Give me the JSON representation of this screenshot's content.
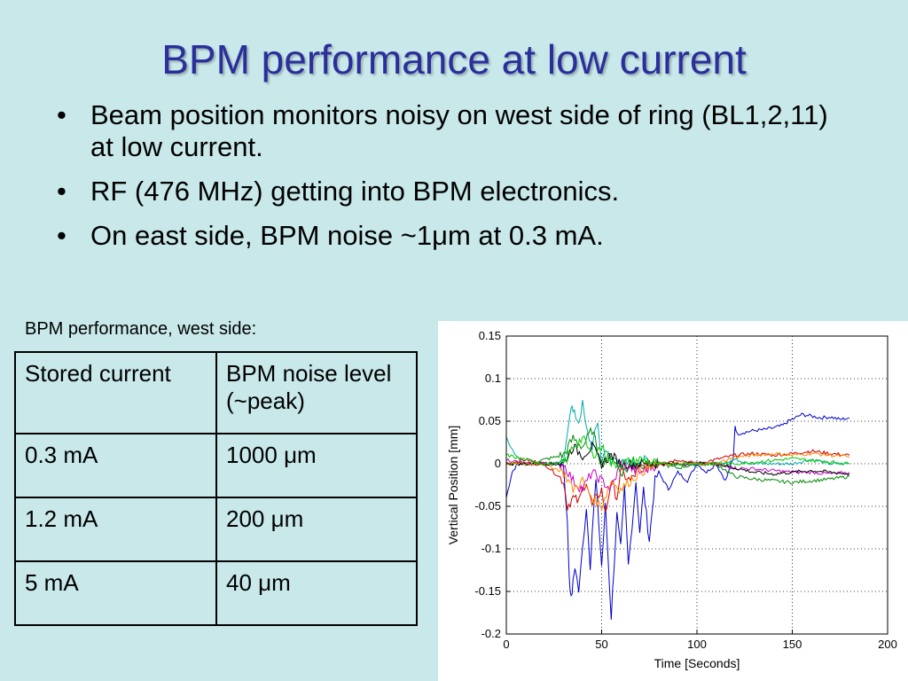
{
  "slide": {
    "title": "BPM performance at low current",
    "bullets": [
      "Beam position monitors noisy on west side of ring (BL1,2,11) at low current.",
      "RF (476 MHz) getting into BPM electronics.",
      "On east side, BPM noise ~1μm at 0.3 mA."
    ],
    "caption": "BPM performance, west side:",
    "table": {
      "headers": [
        "Stored current",
        "BPM noise level (~peak)"
      ],
      "rows": [
        [
          "0.3 mA",
          "1000 μm"
        ],
        [
          "1.2 mA",
          "200 μm"
        ],
        [
          "5 mA",
          "40 μm"
        ]
      ]
    }
  },
  "chart_data": {
    "type": "line",
    "title": "",
    "xlabel": "Time [Seconds]",
    "ylabel": "Vertical Position [mm]",
    "xlim": [
      0,
      200
    ],
    "ylim": [
      -0.2,
      0.15
    ],
    "xticks": [
      0,
      50,
      100,
      150,
      200
    ],
    "yticks": [
      0.15,
      0.1,
      0.05,
      0,
      -0.05,
      -0.1,
      -0.15,
      -0.2
    ],
    "xtick_labels": [
      "0",
      "50",
      "100",
      "150",
      "200"
    ],
    "ytick_labels": [
      "0.15",
      "0.1",
      "0.05",
      "0",
      "-0.05",
      "-0.1",
      "-0.15",
      "-0.2"
    ],
    "grid": true,
    "series": [
      {
        "color": "#0000cc",
        "x": [
          0,
          3,
          6,
          10,
          15,
          20,
          25,
          28,
          30,
          32,
          33,
          34,
          35,
          36,
          38,
          40,
          42,
          44,
          45,
          47,
          50,
          52,
          55,
          58,
          60,
          62,
          64,
          66,
          68,
          70,
          72,
          75,
          78,
          80,
          85,
          90,
          95,
          100,
          105,
          110,
          115,
          118,
          119,
          120,
          121,
          125,
          130,
          135,
          140,
          145,
          148,
          150,
          155,
          160,
          165,
          170,
          175,
          180
        ],
        "y": [
          -0.04,
          -0.01,
          0.0,
          0.0,
          0.0,
          0.0,
          0.0,
          0.0,
          0.0,
          -0.07,
          -0.13,
          -0.16,
          -0.14,
          -0.12,
          -0.15,
          -0.1,
          -0.05,
          -0.12,
          -0.08,
          -0.02,
          -0.12,
          -0.05,
          -0.18,
          -0.06,
          -0.1,
          -0.03,
          -0.12,
          -0.07,
          -0.02,
          -0.08,
          -0.03,
          -0.09,
          -0.02,
          -0.01,
          -0.03,
          -0.01,
          -0.02,
          0.0,
          -0.01,
          0.0,
          -0.02,
          0.0,
          0.005,
          0.045,
          0.035,
          0.037,
          0.039,
          0.04,
          0.042,
          0.045,
          0.05,
          0.052,
          0.058,
          0.056,
          0.054,
          0.055,
          0.052,
          0.054
        ]
      },
      {
        "color": "#00aaaa",
        "x": [
          0,
          5,
          10,
          15,
          20,
          25,
          30,
          32,
          34,
          35,
          38,
          40,
          42,
          45,
          48,
          50,
          52,
          55,
          58,
          60,
          65,
          70,
          80,
          90,
          100,
          110,
          120,
          130,
          140,
          150,
          160,
          170,
          180
        ],
        "y": [
          0.03,
          0.01,
          0.0,
          0.0,
          0.0,
          0.0,
          0.0,
          0.04,
          0.07,
          0.06,
          0.05,
          0.07,
          0.04,
          0.02,
          0.05,
          0.0,
          0.02,
          0.0,
          0.01,
          0.0,
          0.0,
          0.005,
          0.0,
          0.0,
          0.0,
          0.0,
          0.005,
          0.0,
          0.0,
          0.0,
          0.005,
          0.0,
          0.0
        ]
      },
      {
        "color": "#cc0000",
        "x": [
          0,
          10,
          20,
          30,
          32,
          35,
          38,
          40,
          42,
          45,
          50,
          52,
          55,
          58,
          60,
          65,
          70,
          80,
          90,
          100,
          110,
          120,
          130,
          140,
          150,
          160,
          170,
          180
        ],
        "y": [
          0.0,
          0.005,
          0.0,
          -0.02,
          -0.05,
          -0.04,
          -0.045,
          -0.03,
          -0.02,
          -0.05,
          -0.03,
          -0.06,
          -0.02,
          -0.04,
          -0.01,
          -0.02,
          -0.005,
          0.0,
          0.005,
          0.0,
          0.005,
          0.01,
          0.012,
          0.01,
          0.012,
          0.015,
          0.012,
          0.01
        ]
      },
      {
        "color": "#008800",
        "x": [
          0,
          10,
          20,
          30,
          35,
          40,
          45,
          50,
          55,
          60,
          70,
          80,
          90,
          100,
          110,
          120,
          130,
          140,
          150,
          160,
          170,
          180
        ],
        "y": [
          0.0,
          0.0,
          0.005,
          0.01,
          0.03,
          0.02,
          0.04,
          0.0,
          0.01,
          -0.01,
          0.0,
          0.0,
          -0.005,
          0.0,
          0.0,
          -0.015,
          -0.018,
          -0.02,
          -0.022,
          -0.02,
          -0.018,
          -0.015
        ]
      },
      {
        "color": "#cc00cc",
        "x": [
          0,
          10,
          20,
          30,
          35,
          40,
          45,
          50,
          55,
          60,
          70,
          80,
          90,
          100,
          110,
          120,
          130,
          140,
          150,
          160,
          170,
          180
        ],
        "y": [
          0.005,
          0.0,
          0.0,
          0.0,
          -0.02,
          -0.03,
          -0.01,
          -0.02,
          -0.03,
          0.0,
          -0.01,
          0.0,
          0.0,
          0.0,
          0.0,
          -0.005,
          -0.006,
          -0.008,
          -0.01,
          -0.01,
          -0.012,
          -0.01
        ]
      },
      {
        "color": "#000000",
        "x": [
          0,
          10,
          20,
          30,
          35,
          40,
          45,
          50,
          55,
          60,
          70,
          80,
          90,
          100,
          110,
          120,
          130,
          140,
          150,
          160,
          170,
          180
        ],
        "y": [
          0.0,
          0.0,
          0.0,
          0.0,
          0.02,
          0.01,
          0.02,
          0.0,
          0.01,
          0.0,
          0.0,
          0.0,
          0.0,
          0.0,
          0.0,
          -0.005,
          -0.01,
          -0.012,
          -0.01,
          -0.008,
          -0.01,
          -0.012
        ]
      },
      {
        "color": "#ff8800",
        "x": [
          0,
          10,
          20,
          30,
          35,
          40,
          45,
          50,
          55,
          60,
          70,
          80,
          90,
          100,
          110,
          120,
          130,
          140,
          150,
          160,
          170,
          180
        ],
        "y": [
          0.0,
          0.0,
          0.0,
          -0.01,
          -0.03,
          -0.02,
          -0.04,
          -0.05,
          -0.02,
          -0.03,
          -0.01,
          0.0,
          0.0,
          0.0,
          0.0,
          0.008,
          0.01,
          0.012,
          0.01,
          0.012,
          0.01,
          0.008
        ]
      },
      {
        "color": "#00cc00",
        "x": [
          0,
          10,
          20,
          30,
          35,
          40,
          45,
          50,
          55,
          60,
          70,
          80,
          90,
          100,
          110,
          120,
          130,
          140,
          150,
          160,
          170,
          180
        ],
        "y": [
          0.01,
          0.005,
          0.0,
          0.0,
          0.02,
          0.03,
          0.01,
          0.02,
          0.0,
          0.0,
          0.005,
          0.0,
          0.0,
          0.0,
          0.0,
          0.0,
          0.002,
          0.004,
          0.006,
          0.004,
          0.002,
          0.0
        ]
      }
    ]
  }
}
